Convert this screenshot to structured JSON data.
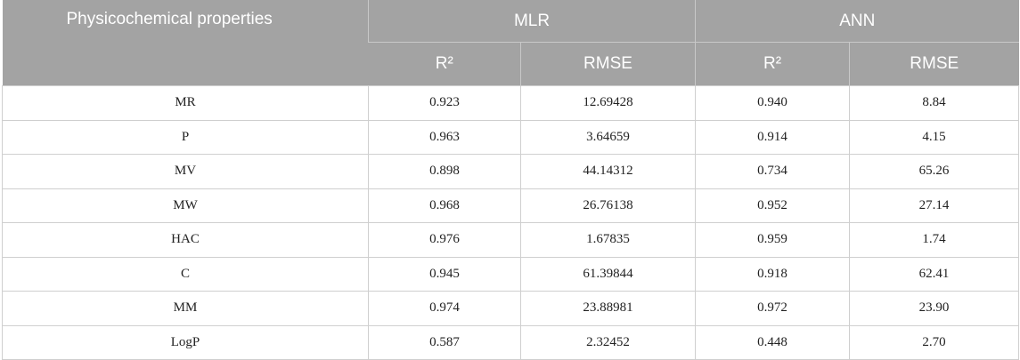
{
  "table": {
    "header": {
      "property_label": "Physicochemical properties",
      "groups": [
        "MLR",
        "ANN"
      ],
      "subcolumns": [
        "R²",
        "RMSE",
        "R²",
        "RMSE"
      ]
    },
    "rows": [
      [
        "MR",
        "0.923",
        "12.69428",
        "0.940",
        "8.84"
      ],
      [
        "P",
        "0.963",
        "3.64659",
        "0.914",
        "4.15"
      ],
      [
        "MV",
        "0.898",
        "44.14312",
        "0.734",
        "65.26"
      ],
      [
        "MW",
        "0.968",
        "26.76138",
        "0.952",
        "27.14"
      ],
      [
        "HAC",
        "0.976",
        "1.67835",
        "0.959",
        "1.74"
      ],
      [
        "C",
        "0.945",
        "61.39844",
        "0.918",
        "62.41"
      ],
      [
        "MM",
        "0.974",
        "23.88981",
        "0.972",
        "23.90"
      ],
      [
        "LogP",
        "0.587",
        "2.32452",
        "0.448",
        "2.70"
      ]
    ]
  },
  "colors": {
    "header_background": "#a3a3a3",
    "header_text": "#ffffff",
    "grid_line": "#cfcfcf"
  }
}
